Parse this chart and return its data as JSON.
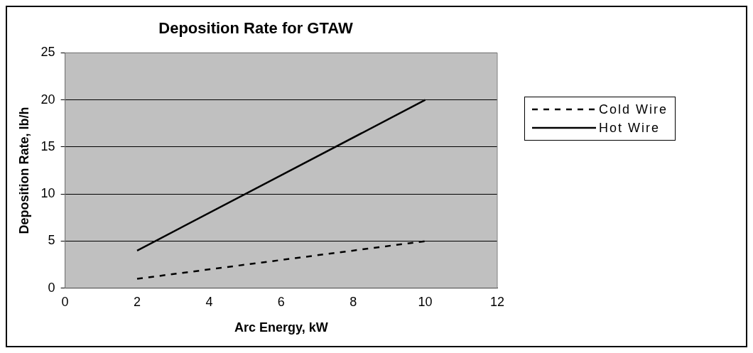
{
  "chart_data": {
    "type": "line",
    "title": "Deposition Rate for GTAW",
    "xlabel": "Arc Energy, kW",
    "ylabel": "Deposition Rate, lb/h",
    "x": [
      2,
      10
    ],
    "series": [
      {
        "name": "Cold Wire",
        "color": "#000000",
        "values": [
          1,
          5
        ],
        "line_style": "dashed"
      },
      {
        "name": "Hot Wire",
        "color": "#000000",
        "values": [
          4,
          20
        ],
        "line_style": "solid"
      }
    ],
    "xlim": [
      0,
      12
    ],
    "xticks": [
      0,
      2,
      4,
      6,
      8,
      10,
      12
    ],
    "ylim": [
      0,
      25
    ],
    "yticks": [
      0,
      5,
      10,
      15,
      20,
      25
    ],
    "grid": "y",
    "legend": "right",
    "marker": "none"
  }
}
